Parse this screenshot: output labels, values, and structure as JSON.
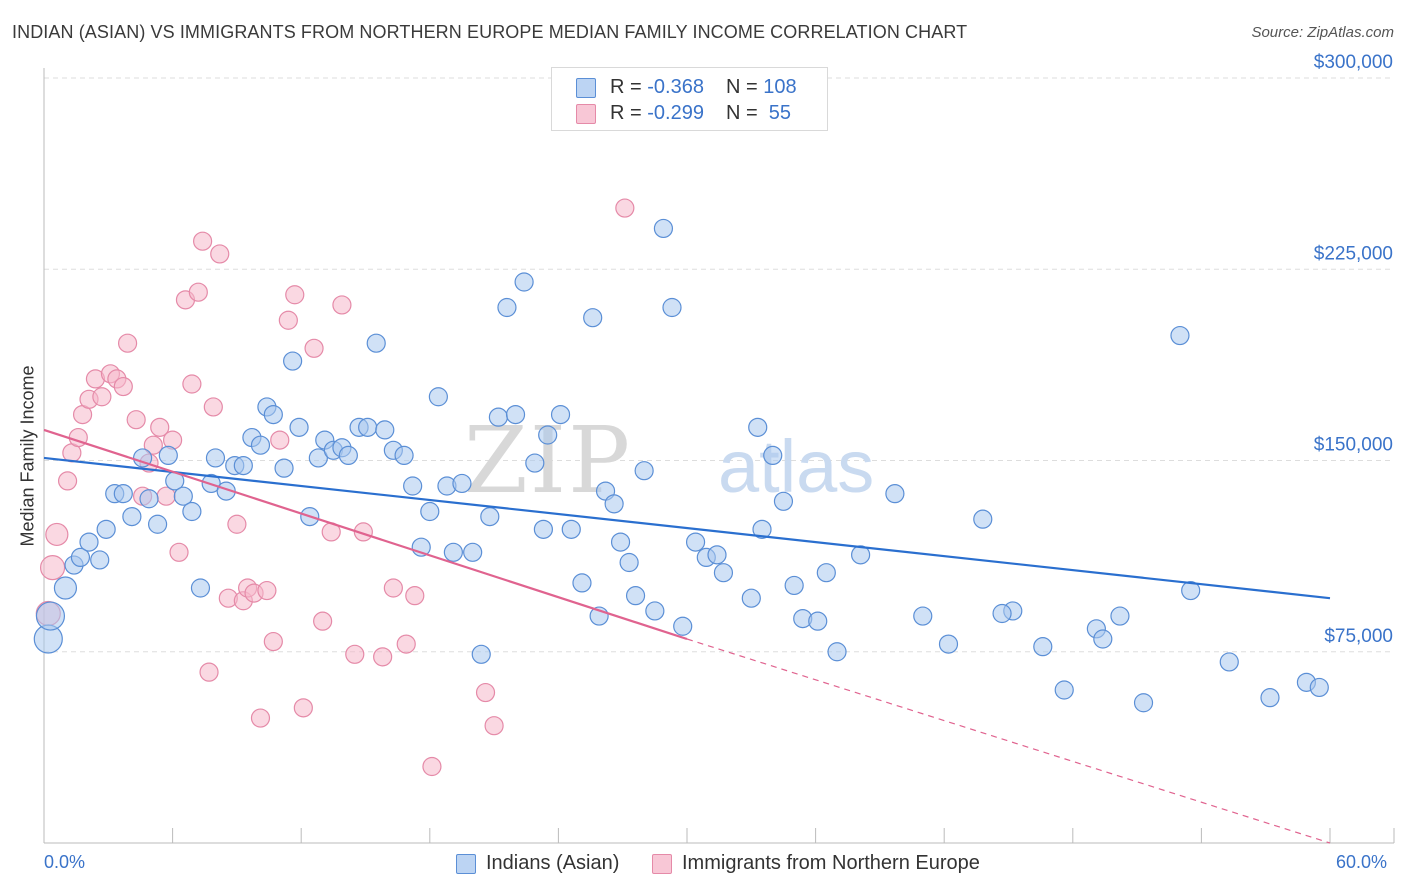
{
  "header": {
    "title": "INDIAN (ASIAN) VS IMMIGRANTS FROM NORTHERN EUROPE MEDIAN FAMILY INCOME CORRELATION CHART",
    "source": "Source: ZipAtlas.com"
  },
  "legend_top": {
    "series1": {
      "r_label": "R = ",
      "r_value": "-0.368",
      "n_label": "N = ",
      "n_value": "108"
    },
    "series2": {
      "r_label": "R = ",
      "r_value": "-0.299",
      "n_label": "N = ",
      "n_value": " 55"
    }
  },
  "legend_bottom": {
    "series1": "Indians (Asian)",
    "series2": "Immigrants from Northern Europe"
  },
  "watermark": {
    "zip": "ZIP",
    "atlas": "atlas"
  },
  "colors": {
    "blue_fill": "#a9c8ef",
    "blue_stroke": "#5b8fd6",
    "blue_line": "#2a6fcf",
    "pink_fill": "#f5b8cb",
    "pink_stroke": "#e58aa8",
    "pink_line": "#e0638f",
    "axis_text": "#3a73c9",
    "grid": "#dddddd"
  },
  "chart_data": {
    "type": "scatter",
    "title": "INDIAN (ASIAN) VS IMMIGRANTS FROM NORTHERN EUROPE MEDIAN FAMILY INCOME CORRELATION CHART",
    "xlabel": "",
    "ylabel": "Median Family Income",
    "xlim": [
      0,
      60
    ],
    "ylim": [
      0,
      300000
    ],
    "x_tick_labels": [
      "0.0%",
      "60.0%"
    ],
    "y_ticks": [
      75000,
      150000,
      225000,
      300000
    ],
    "y_tick_labels": [
      "$75,000",
      "$150,000",
      "$225,000",
      "$300,000"
    ],
    "grid": true,
    "legend_placement": "top-center",
    "series": [
      {
        "name": "Indians (Asian)",
        "color": "blue",
        "trend": {
          "x": [
            0,
            60
          ],
          "y": [
            151000,
            96000
          ]
        },
        "points": [
          [
            0.2,
            80000,
            14
          ],
          [
            0.3,
            89000,
            14
          ],
          [
            1.0,
            100000,
            11
          ],
          [
            1.4,
            109000,
            9
          ],
          [
            1.7,
            112000,
            9
          ],
          [
            2.1,
            118000,
            9
          ],
          [
            2.6,
            111000,
            9
          ],
          [
            2.9,
            123000,
            9
          ],
          [
            3.3,
            137000,
            9
          ],
          [
            3.7,
            137000,
            9
          ],
          [
            4.1,
            128000,
            9
          ],
          [
            4.6,
            151000,
            9
          ],
          [
            4.9,
            135000,
            9
          ],
          [
            5.3,
            125000,
            9
          ],
          [
            5.8,
            152000,
            9
          ],
          [
            6.1,
            142000,
            9
          ],
          [
            6.5,
            136000,
            9
          ],
          [
            6.9,
            130000,
            9
          ],
          [
            7.3,
            100000,
            9
          ],
          [
            7.8,
            141000,
            9
          ],
          [
            8.0,
            151000,
            9
          ],
          [
            8.5,
            138000,
            9
          ],
          [
            8.9,
            148000,
            9
          ],
          [
            9.3,
            148000,
            9
          ],
          [
            9.7,
            159000,
            9
          ],
          [
            10.1,
            156000,
            9
          ],
          [
            10.4,
            171000,
            9
          ],
          [
            10.7,
            168000,
            9
          ],
          [
            11.2,
            147000,
            9
          ],
          [
            11.6,
            189000,
            9
          ],
          [
            11.9,
            163000,
            9
          ],
          [
            12.4,
            128000,
            9
          ],
          [
            12.8,
            151000,
            9
          ],
          [
            13.1,
            158000,
            9
          ],
          [
            13.5,
            154000,
            9
          ],
          [
            13.9,
            155000,
            9
          ],
          [
            14.2,
            152000,
            9
          ],
          [
            14.7,
            163000,
            9
          ],
          [
            15.1,
            163000,
            9
          ],
          [
            15.5,
            196000,
            9
          ],
          [
            15.9,
            162000,
            9
          ],
          [
            16.3,
            154000,
            9
          ],
          [
            16.8,
            152000,
            9
          ],
          [
            17.2,
            140000,
            9
          ],
          [
            17.6,
            116000,
            9
          ],
          [
            18.0,
            130000,
            9
          ],
          [
            18.4,
            175000,
            9
          ],
          [
            18.8,
            140000,
            9
          ],
          [
            19.1,
            114000,
            9
          ],
          [
            19.5,
            141000,
            9
          ],
          [
            20.0,
            114000,
            9
          ],
          [
            20.4,
            74000,
            9
          ],
          [
            20.8,
            128000,
            9
          ],
          [
            21.2,
            167000,
            9
          ],
          [
            21.6,
            210000,
            9
          ],
          [
            22.0,
            168000,
            9
          ],
          [
            22.4,
            220000,
            9
          ],
          [
            22.9,
            149000,
            9
          ],
          [
            23.3,
            123000,
            9
          ],
          [
            23.5,
            160000,
            9
          ],
          [
            24.1,
            168000,
            9
          ],
          [
            24.6,
            123000,
            9
          ],
          [
            25.1,
            102000,
            9
          ],
          [
            25.6,
            206000,
            9
          ],
          [
            25.9,
            89000,
            9
          ],
          [
            26.2,
            138000,
            9
          ],
          [
            26.6,
            133000,
            9
          ],
          [
            26.9,
            118000,
            9
          ],
          [
            27.3,
            110000,
            9
          ],
          [
            27.6,
            97000,
            9
          ],
          [
            28.0,
            146000,
            9
          ],
          [
            28.5,
            91000,
            9
          ],
          [
            28.9,
            241000,
            9
          ],
          [
            29.3,
            210000,
            9
          ],
          [
            29.8,
            85000,
            9
          ],
          [
            30.4,
            118000,
            9
          ],
          [
            30.9,
            112000,
            9
          ],
          [
            31.4,
            113000,
            9
          ],
          [
            31.7,
            106000,
            9
          ],
          [
            33.0,
            96000,
            9
          ],
          [
            33.3,
            163000,
            9
          ],
          [
            33.5,
            123000,
            9
          ],
          [
            34.0,
            152000,
            9
          ],
          [
            34.5,
            134000,
            9
          ],
          [
            35.0,
            101000,
            9
          ],
          [
            35.4,
            88000,
            9
          ],
          [
            36.1,
            87000,
            9
          ],
          [
            36.5,
            106000,
            9
          ],
          [
            37.0,
            75000,
            9
          ],
          [
            38.1,
            113000,
            9
          ],
          [
            39.7,
            137000,
            9
          ],
          [
            41.0,
            89000,
            9
          ],
          [
            42.2,
            78000,
            9
          ],
          [
            43.8,
            127000,
            9
          ],
          [
            45.2,
            91000,
            9
          ],
          [
            46.6,
            77000,
            9
          ],
          [
            47.6,
            60000,
            9
          ],
          [
            49.1,
            84000,
            9
          ],
          [
            50.2,
            89000,
            9
          ],
          [
            51.3,
            55000,
            9
          ],
          [
            53.0,
            199000,
            9
          ],
          [
            53.5,
            99000,
            9
          ],
          [
            55.3,
            71000,
            9
          ],
          [
            57.2,
            57000,
            9
          ],
          [
            58.9,
            63000,
            9
          ],
          [
            59.5,
            61000,
            9
          ],
          [
            49.4,
            80000,
            9
          ],
          [
            44.7,
            90000,
            9
          ]
        ]
      },
      {
        "name": "Immigrants from Northern Europe",
        "color": "pink",
        "trend": {
          "x": [
            0,
            30
          ],
          "y": [
            162000,
            80000
          ]
        },
        "trend_dashed": {
          "x": [
            30,
            60
          ],
          "y": [
            80000,
            0
          ]
        },
        "points": [
          [
            0.4,
            108000,
            12
          ],
          [
            0.6,
            121000,
            11
          ],
          [
            0.2,
            90000,
            12
          ],
          [
            1.1,
            142000,
            9
          ],
          [
            1.3,
            153000,
            9
          ],
          [
            1.6,
            159000,
            9
          ],
          [
            1.8,
            168000,
            9
          ],
          [
            2.1,
            174000,
            9
          ],
          [
            2.4,
            182000,
            9
          ],
          [
            2.7,
            175000,
            9
          ],
          [
            3.1,
            184000,
            9
          ],
          [
            3.4,
            182000,
            9
          ],
          [
            3.7,
            179000,
            9
          ],
          [
            3.9,
            196000,
            9
          ],
          [
            4.3,
            166000,
            9
          ],
          [
            4.6,
            136000,
            9
          ],
          [
            4.9,
            149000,
            9
          ],
          [
            5.1,
            156000,
            9
          ],
          [
            5.4,
            163000,
            9
          ],
          [
            5.7,
            136000,
            9
          ],
          [
            6.0,
            158000,
            9
          ],
          [
            6.3,
            114000,
            9
          ],
          [
            6.6,
            213000,
            9
          ],
          [
            6.9,
            180000,
            9
          ],
          [
            7.2,
            216000,
            9
          ],
          [
            7.4,
            236000,
            9
          ],
          [
            7.7,
            67000,
            9
          ],
          [
            7.9,
            171000,
            9
          ],
          [
            8.2,
            231000,
            9
          ],
          [
            8.6,
            96000,
            9
          ],
          [
            9.0,
            125000,
            9
          ],
          [
            9.3,
            95000,
            9
          ],
          [
            9.5,
            100000,
            9
          ],
          [
            9.8,
            98000,
            9
          ],
          [
            10.1,
            49000,
            9
          ],
          [
            10.4,
            99000,
            9
          ],
          [
            10.7,
            79000,
            9
          ],
          [
            11.0,
            158000,
            9
          ],
          [
            11.4,
            205000,
            9
          ],
          [
            11.7,
            215000,
            9
          ],
          [
            12.1,
            53000,
            9
          ],
          [
            12.6,
            194000,
            9
          ],
          [
            13.0,
            87000,
            9
          ],
          [
            13.4,
            122000,
            9
          ],
          [
            13.9,
            211000,
            9
          ],
          [
            14.5,
            74000,
            9
          ],
          [
            14.9,
            122000,
            9
          ],
          [
            15.8,
            73000,
            9
          ],
          [
            16.3,
            100000,
            9
          ],
          [
            16.9,
            78000,
            9
          ],
          [
            17.3,
            97000,
            9
          ],
          [
            18.1,
            30000,
            9
          ],
          [
            20.6,
            59000,
            9
          ],
          [
            21.0,
            46000,
            9
          ],
          [
            27.1,
            249000,
            9
          ]
        ]
      }
    ]
  }
}
